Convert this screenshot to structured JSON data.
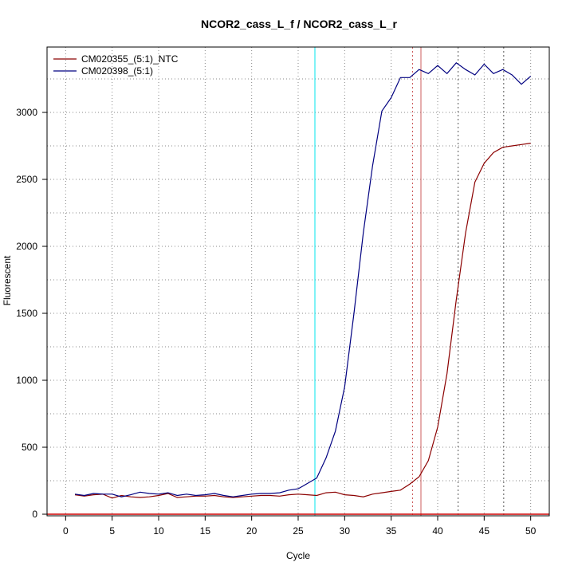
{
  "chart_data": {
    "type": "line",
    "title": "NCOR2_cass_L_f / NCOR2_cass_L_r",
    "xlabel": "Cycle",
    "ylabel": "Fluorescent",
    "xlim": [
      -2,
      52
    ],
    "ylim": [
      0,
      3500
    ],
    "xticks": [
      0,
      5,
      10,
      15,
      20,
      25,
      30,
      35,
      40,
      45,
      50
    ],
    "yticks": [
      0,
      500,
      1000,
      1500,
      2000,
      2500,
      3000
    ],
    "grid": "dotted",
    "legend_position": "top-left",
    "x": [
      1,
      2,
      3,
      4,
      5,
      6,
      7,
      8,
      9,
      10,
      11,
      12,
      13,
      14,
      15,
      16,
      17,
      18,
      19,
      20,
      21,
      22,
      23,
      24,
      25,
      26,
      27,
      28,
      29,
      30,
      31,
      32,
      33,
      34,
      35,
      36,
      37,
      38,
      39,
      40,
      41,
      42,
      43,
      44,
      45,
      46,
      47,
      48,
      49,
      50
    ],
    "series": [
      {
        "name": "CM020355_(5:1)_NTC",
        "color": "#8b0000",
        "values": [
          145,
          135,
          145,
          150,
          120,
          140,
          130,
          125,
          130,
          140,
          155,
          125,
          130,
          135,
          135,
          140,
          130,
          125,
          130,
          135,
          140,
          140,
          135,
          145,
          150,
          145,
          140,
          160,
          165,
          145,
          140,
          130,
          150,
          160,
          170,
          180,
          225,
          280,
          400,
          650,
          1050,
          1600,
          2100,
          2480,
          2620,
          2700,
          2740,
          2750,
          2760,
          2770
        ]
      },
      {
        "name": "CM020398_(5:1)",
        "color": "#000080",
        "values": [
          150,
          140,
          155,
          150,
          150,
          130,
          145,
          165,
          155,
          150,
          160,
          140,
          150,
          140,
          145,
          155,
          140,
          130,
          140,
          150,
          155,
          155,
          160,
          180,
          190,
          230,
          270,
          420,
          620,
          950,
          1500,
          2100,
          2600,
          3010,
          3110,
          3260,
          3260,
          3320,
          3290,
          3350,
          3290,
          3370,
          3320,
          3280,
          3360,
          3290,
          3320,
          3280,
          3210,
          3270
        ]
      }
    ],
    "vlines": [
      {
        "x": 26.8,
        "color": "#00e5ee",
        "style": "solid"
      },
      {
        "x": 38.2,
        "color": "#cd5c5c",
        "style": "solid"
      },
      {
        "x": 37.3,
        "color": "#cd5c5c",
        "style": "dotted"
      },
      {
        "x": 42.2,
        "color": "#555555",
        "style": "dotted"
      },
      {
        "x": 47.1,
        "color": "#555555",
        "style": "dotted"
      }
    ],
    "hline": {
      "y": 0,
      "color": "#cc0000"
    }
  }
}
